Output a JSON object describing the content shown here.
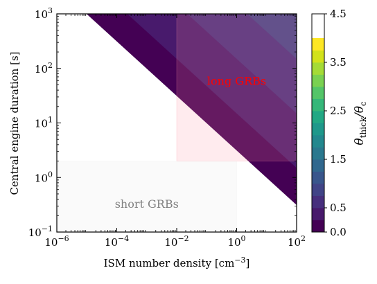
{
  "chart_data": {
    "type": "heatmap",
    "subtype": "filled-contour",
    "x_axis": {
      "label": "ISM number density [cm",
      "label_sup": "−3",
      "label_end": "]",
      "scale": "log",
      "range": [
        1e-06,
        100
      ],
      "ticks": [
        {
          "base": "10",
          "exp": "−6",
          "value": 1e-06
        },
        {
          "base": "10",
          "exp": "−4",
          "value": 0.0001
        },
        {
          "base": "10",
          "exp": "−2",
          "value": 0.01
        },
        {
          "base": "10",
          "exp": "0",
          "value": 1
        },
        {
          "base": "10",
          "exp": "2",
          "value": 100
        }
      ]
    },
    "y_axis": {
      "label": "Central engine duration [s]",
      "scale": "log",
      "range": [
        0.1,
        1000
      ],
      "ticks": [
        {
          "base": "10",
          "exp": "−1",
          "value": 0.1
        },
        {
          "base": "10",
          "exp": "0",
          "value": 1
        },
        {
          "base": "10",
          "exp": "1",
          "value": 10
        },
        {
          "base": "10",
          "exp": "2",
          "value": 100
        },
        {
          "base": "10",
          "exp": "3",
          "value": 1000
        }
      ]
    },
    "colorbar": {
      "label_main": "θ",
      "label_sub1": "thick",
      "label_sep": "/θ",
      "label_sub2": "c",
      "colormap": "viridis",
      "range": [
        0,
        4.5
      ],
      "levels": [
        0,
        0.25,
        0.5,
        0.75,
        1.0,
        1.25,
        1.5,
        1.75,
        2.0,
        2.25,
        2.5,
        2.75,
        3.0,
        3.25,
        3.5,
        3.75,
        4.0,
        4.25,
        4.5
      ],
      "level_colors": [
        "#440154",
        "#481a6c",
        "#472f7d",
        "#414487",
        "#39568c",
        "#31688e",
        "#2a788e",
        "#23888e",
        "#1f988b",
        "#22a884",
        "#35b779",
        "#54c568",
        "#7ad151",
        "#a5db36",
        "#d2e21b",
        "#fde725"
      ],
      "tick_labels": [
        "0.0",
        "0.5",
        "1.5",
        "2.5",
        "3.5",
        "4.5"
      ],
      "tick_values": [
        0,
        0.5,
        1.5,
        2.5,
        3.5,
        4.5
      ]
    },
    "contour_model": {
      "valid_region_boundary": "log10(t) >= 0.5 - 0.5*log10(n)",
      "value_formula": "0.25*(log10(t) - 0.5 + 0.5*log10(n)) + 0.08",
      "undefined_below_boundary": true
    },
    "regions": [
      {
        "label": "long GRBs",
        "color": "#ff0000",
        "fill": "#ff8fa3",
        "x_range": [
          0.01,
          100
        ],
        "y_range": [
          2,
          1000
        ]
      },
      {
        "label": "short GRBs",
        "color": "#808080",
        "fill": "#ececec",
        "x_range": [
          1e-06,
          1
        ],
        "y_range": [
          0.1,
          2
        ]
      }
    ],
    "grid": false
  }
}
